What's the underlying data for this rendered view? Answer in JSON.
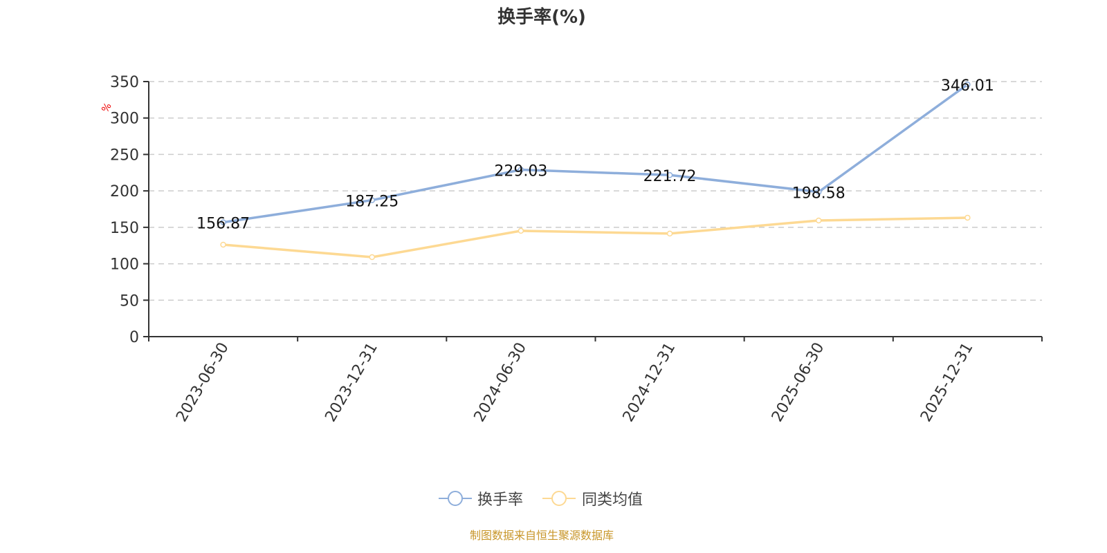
{
  "chart_data": {
    "type": "line",
    "title": "换手率(%)",
    "ylabel": "%",
    "xlabel": "",
    "ylim": [
      0,
      350
    ],
    "yticks": [
      0,
      50,
      100,
      150,
      200,
      250,
      300,
      350
    ],
    "grid": true,
    "legend_position": "bottom",
    "categories": [
      "2023-06-30",
      "2023-12-31",
      "2024-06-30",
      "2024-12-31",
      "2025-06-30",
      "2025-12-31"
    ],
    "series": [
      {
        "name": "换手率",
        "color": "#8eaedb",
        "values": [
          156.87,
          187.25,
          229.03,
          221.72,
          198.58,
          346.01
        ],
        "labels": [
          "156.87",
          "187.25",
          "229.03",
          "221.72",
          "198.58",
          "346.01"
        ]
      },
      {
        "name": "同类均值",
        "color": "#fdd993",
        "values": [
          126.2,
          109.1,
          145.2,
          141.4,
          159.4,
          163.2
        ]
      }
    ],
    "source": "制图数据来自恒生聚源数据库"
  }
}
